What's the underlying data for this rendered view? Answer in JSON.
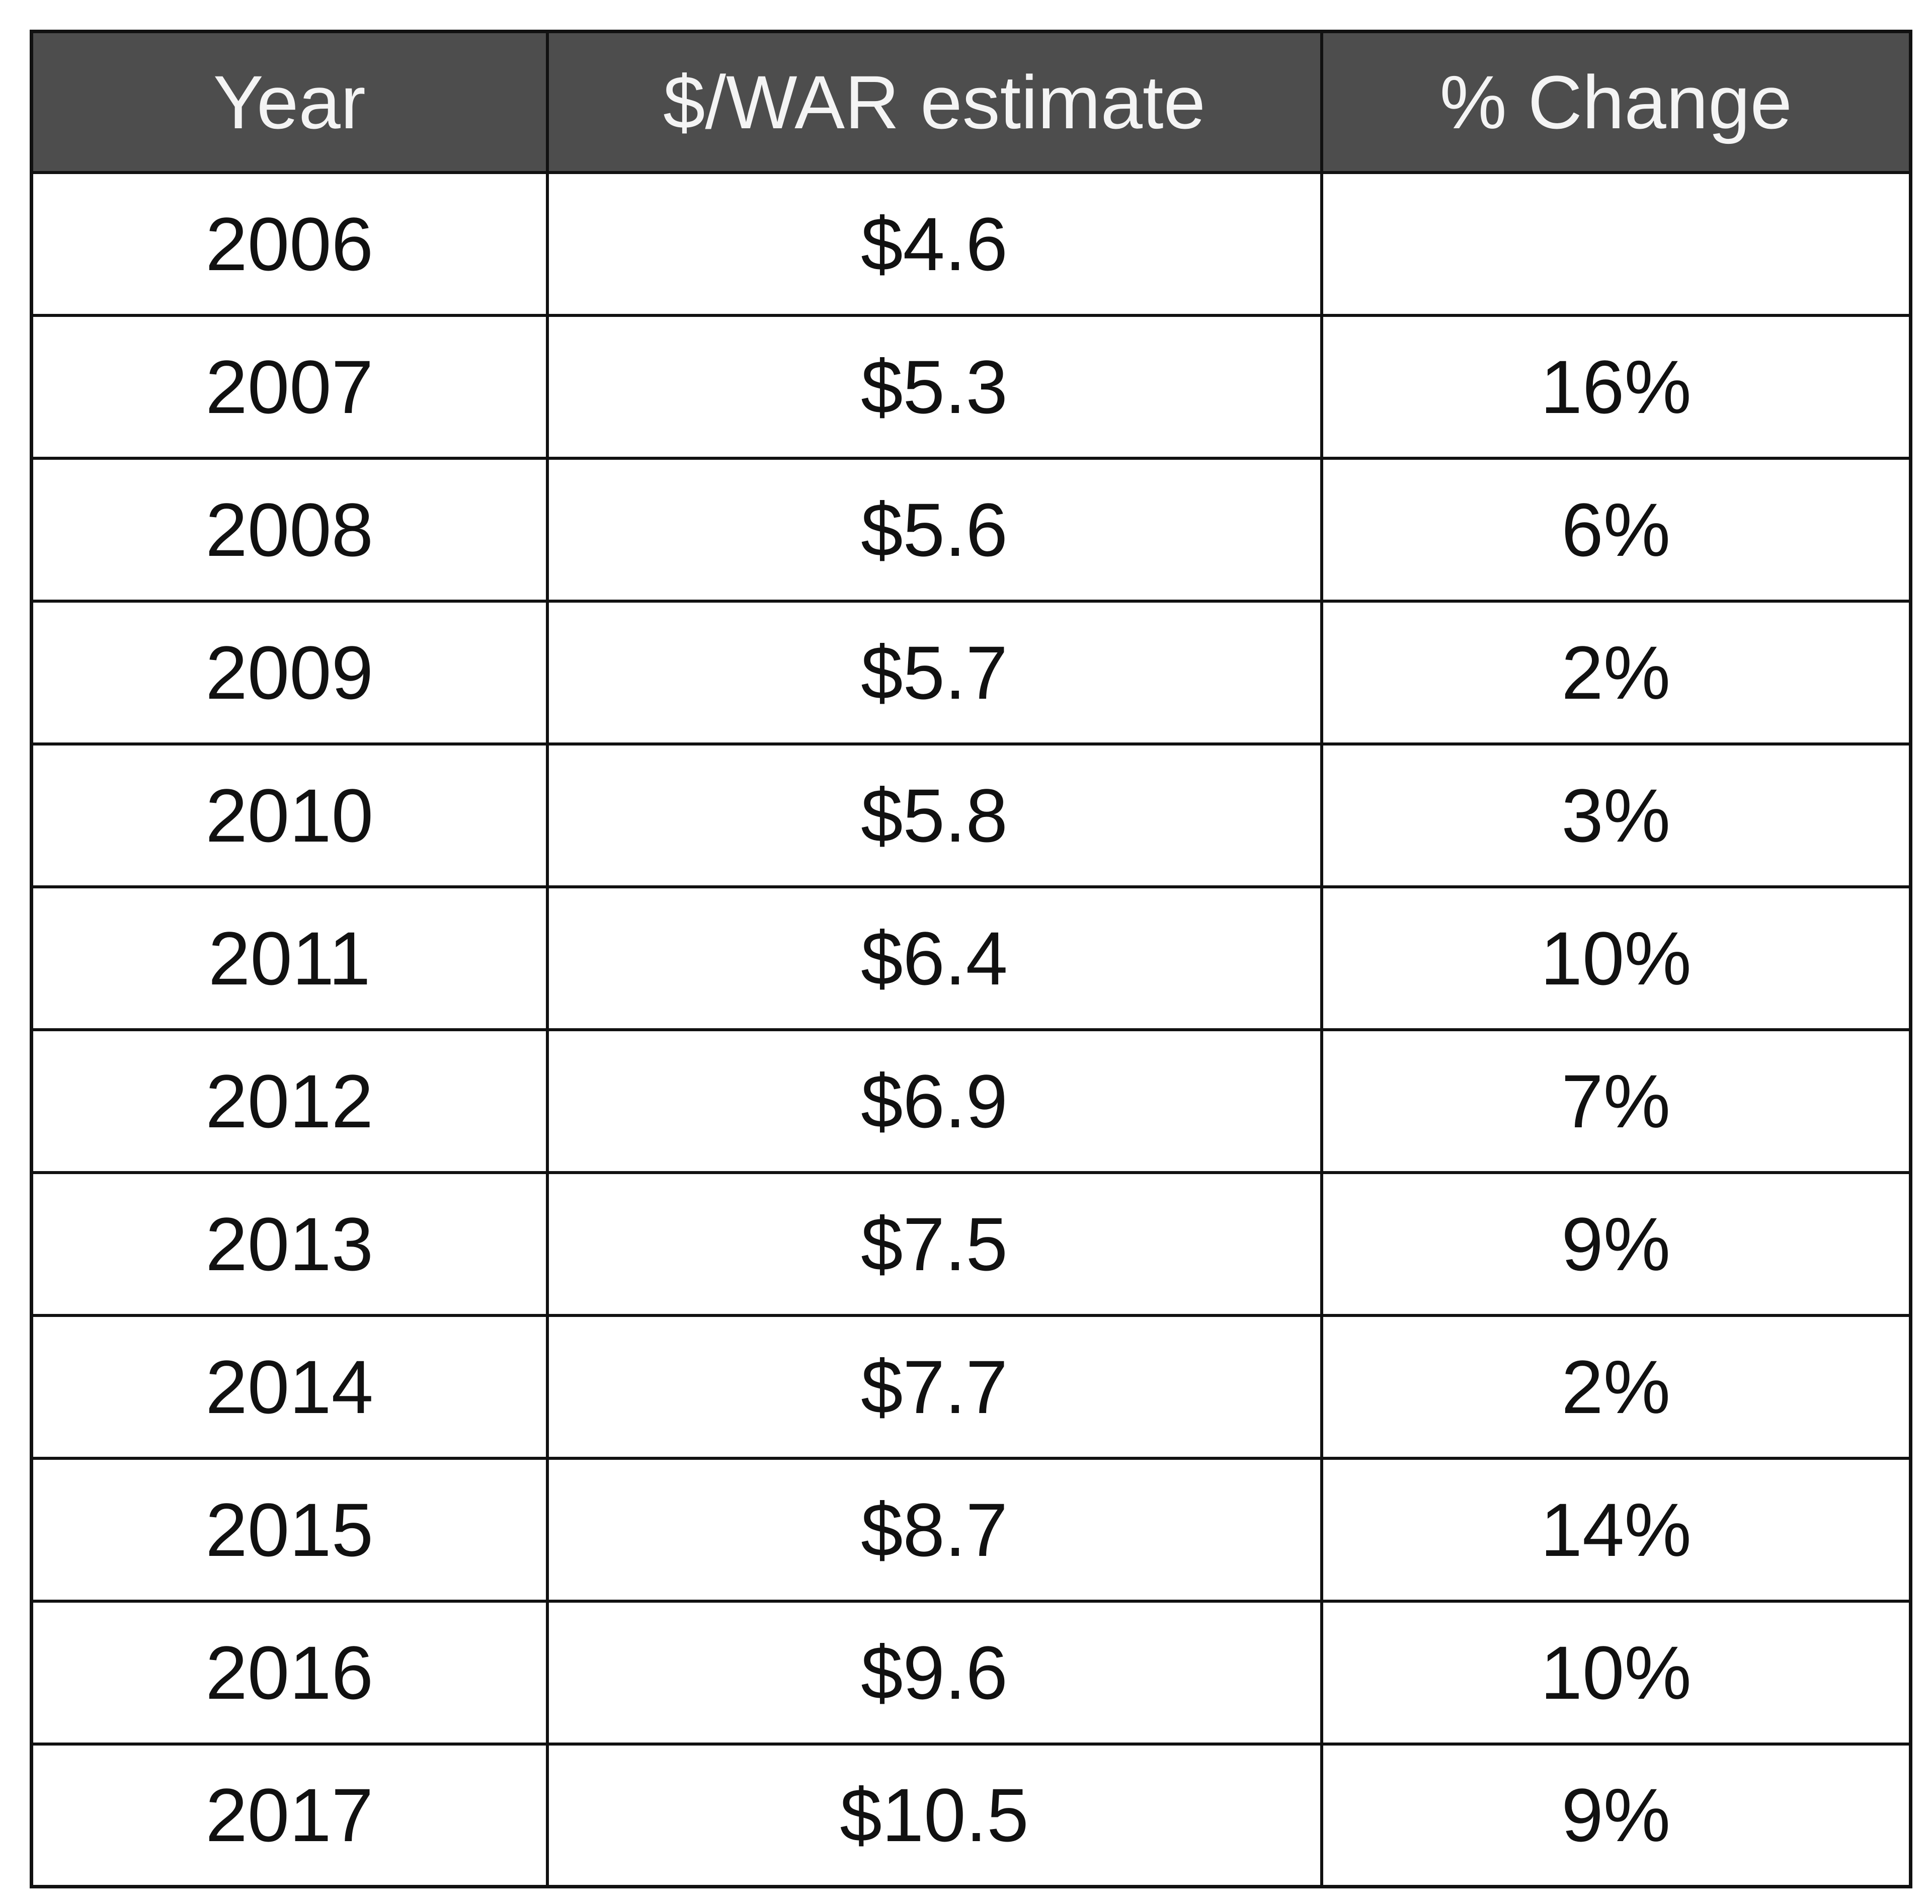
{
  "chart_data": {
    "type": "table",
    "columns": [
      "Year",
      "$/WAR estimate",
      "% Change"
    ],
    "rows": [
      [
        "2006",
        "$4.6",
        ""
      ],
      [
        "2007",
        "$5.3",
        "16%"
      ],
      [
        "2008",
        "$5.6",
        "6%"
      ],
      [
        "2009",
        "$5.7",
        "2%"
      ],
      [
        "2010",
        "$5.8",
        "3%"
      ],
      [
        "2011",
        "$6.4",
        "10%"
      ],
      [
        "2012",
        "$6.9",
        "7%"
      ],
      [
        "2013",
        "$7.5",
        "9%"
      ],
      [
        "2014",
        "$7.7",
        "2%"
      ],
      [
        "2015",
        "$8.7",
        "14%"
      ],
      [
        "2016",
        "$9.6",
        "10%"
      ],
      [
        "2017",
        "$10.5",
        "9%"
      ]
    ],
    "colors": {
      "header_background": "#4d4d4d",
      "header_text": "#f4f4f4",
      "body_background": "#ffffff",
      "body_text": "#111111",
      "border": "#111111"
    }
  }
}
